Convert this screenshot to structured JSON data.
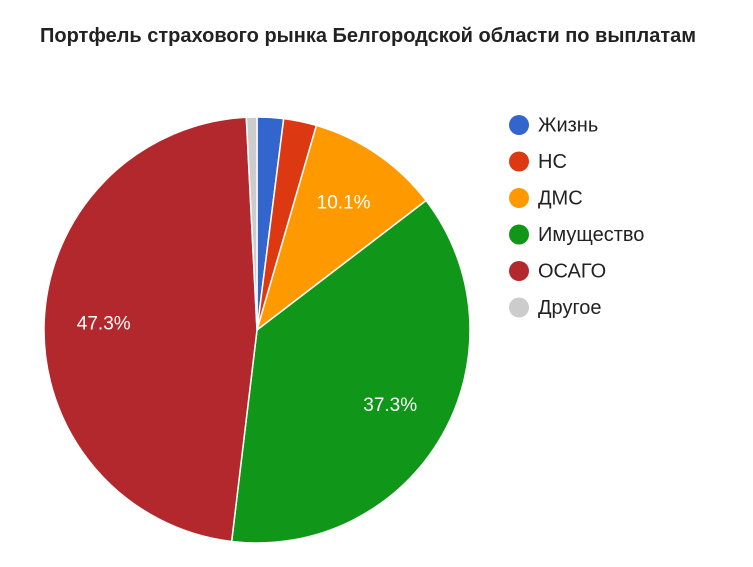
{
  "chart_data": {
    "type": "pie",
    "title": "Портфель страхового рынка Белгородской области по выплатам",
    "categories": [
      "Жизнь",
      "НС",
      "ДМС",
      "Имущество",
      "ОСАГО",
      "Другое"
    ],
    "values": [
      2.0,
      2.5,
      10.1,
      37.3,
      47.3,
      0.8
    ],
    "value_labels": [
      null,
      null,
      "10.1%",
      "37.3%",
      "47.3%",
      null
    ],
    "colors": [
      "#3366cc",
      "#dc3912",
      "#ff9900",
      "#109618",
      "#b3282d",
      "#cccccc"
    ],
    "legend": "right"
  }
}
